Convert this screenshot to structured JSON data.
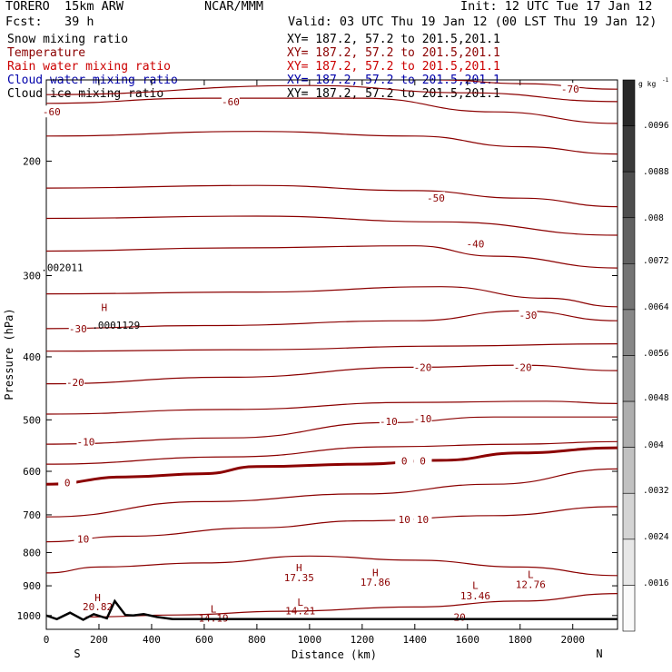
{
  "header": {
    "model": "TORERO  15km ARW",
    "center": "NCAR/MMM",
    "init": "Init: 12 UTC Tue 17 Jan 12",
    "fcst": "Fcst:   39 h",
    "valid": "Valid: 03 UTC Thu 19 Jan 12 (00 LST Thu 19 Jan 12)"
  },
  "legend": [
    {
      "name": "Snow mixing ratio",
      "xy": "XY= 187.2, 57.2 to 201.5,201.1",
      "color": "#000000"
    },
    {
      "name": "Temperature",
      "xy": "XY= 187.2, 57.2 to 201.5,201.1",
      "color": "#8b0000"
    },
    {
      "name": "Rain water mixing ratio",
      "xy": "XY= 187.2, 57.2 to 201.5,201.1",
      "color": "#cc0000"
    },
    {
      "name": "Cloud water mixing ratio",
      "xy": "XY= 187.2, 57.2 to 201.5,201.1",
      "color": "#0000aa"
    },
    {
      "name": "Cloud ice mixing ratio",
      "xy": "XY= 187.2, 57.2 to 201.5,201.1",
      "color": "#000000"
    }
  ],
  "colorbar": {
    "unit": "g kg",
    "unit_exp": "-1",
    "ticks": [
      ".0096",
      ".0088",
      ".008",
      ".0072",
      ".0064",
      ".0056",
      ".0048",
      ".004",
      ".0032",
      ".0024",
      ".0016"
    ],
    "range": [
      0.0008,
      0.01
    ]
  },
  "chart_data": {
    "type": "contour",
    "xlabel": "Distance (km)",
    "ylabel": "Pressure (hPa)",
    "xlim": [
      0,
      2170
    ],
    "ylim": [
      1050,
      150
    ],
    "y_scale": "log",
    "xticks": [
      0,
      200,
      400,
      600,
      800,
      1000,
      1200,
      1400,
      1600,
      1800,
      2000
    ],
    "yticks": [
      200,
      300,
      400,
      500,
      600,
      700,
      800,
      900,
      1000
    ],
    "x_end_labels": {
      "left": "S",
      "right": "N"
    },
    "temperature_interval_C": 5,
    "temperature_contours": [
      {
        "label": "-60",
        "points": [
          [
            0,
            163
          ],
          [
            600,
            160
          ],
          [
            1200,
            160
          ],
          [
            1700,
            168
          ],
          [
            2170,
            175
          ]
        ],
        "labels_at": [
          [
            20,
            168
          ],
          [
            700,
            162
          ]
        ]
      },
      {
        "label": "-65",
        "points": [
          [
            0,
            158
          ],
          [
            1000,
            153
          ],
          [
            1600,
            157
          ],
          [
            2170,
            162
          ]
        ],
        "labels_at": []
      },
      {
        "label": "-70",
        "points": [
          [
            1500,
            150
          ],
          [
            1800,
            152
          ],
          [
            2170,
            155
          ]
        ],
        "labels_at": [
          [
            1990,
            155
          ]
        ]
      },
      {
        "label": "-55",
        "points": [
          [
            0,
            183
          ],
          [
            800,
            180
          ],
          [
            1400,
            183
          ],
          [
            1800,
            190
          ],
          [
            2170,
            195
          ]
        ],
        "labels_at": []
      },
      {
        "label": "-50",
        "points": [
          [
            0,
            220
          ],
          [
            800,
            218
          ],
          [
            1400,
            222
          ],
          [
            1800,
            228
          ],
          [
            2170,
            235
          ]
        ],
        "labels_at": [
          [
            1480,
            228
          ]
        ]
      },
      {
        "label": "-45",
        "points": [
          [
            0,
            245
          ],
          [
            800,
            243
          ],
          [
            1500,
            248
          ],
          [
            2170,
            260
          ]
        ],
        "labels_at": []
      },
      {
        "label": "-40",
        "points": [
          [
            0,
            275
          ],
          [
            700,
            272
          ],
          [
            1400,
            270
          ],
          [
            1700,
            280
          ],
          [
            2170,
            292
          ]
        ],
        "labels_at": [
          [
            1630,
            268
          ]
        ]
      },
      {
        "label": "-35",
        "points": [
          [
            0,
            320
          ],
          [
            800,
            318
          ],
          [
            1500,
            312
          ],
          [
            1900,
            325
          ],
          [
            2170,
            335
          ]
        ],
        "labels_at": []
      },
      {
        "label": "-30",
        "points": [
          [
            0,
            362
          ],
          [
            600,
            358
          ],
          [
            1400,
            352
          ],
          [
            1800,
            340
          ],
          [
            2170,
            352
          ]
        ],
        "labels_at": [
          [
            120,
            362
          ],
          [
            1830,
            345
          ]
        ]
      },
      {
        "label": "-25",
        "points": [
          [
            0,
            392
          ],
          [
            800,
            390
          ],
          [
            1500,
            385
          ],
          [
            2170,
            382
          ]
        ],
        "labels_at": []
      },
      {
        "label": "-20",
        "points": [
          [
            0,
            440
          ],
          [
            700,
            430
          ],
          [
            1400,
            415
          ],
          [
            1800,
            412
          ],
          [
            2170,
            420
          ]
        ],
        "labels_at": [
          [
            110,
            438
          ],
          [
            1430,
            415
          ],
          [
            1810,
            415
          ]
        ]
      },
      {
        "label": "-15",
        "points": [
          [
            0,
            490
          ],
          [
            700,
            482
          ],
          [
            1400,
            470
          ],
          [
            1900,
            468
          ],
          [
            2170,
            472
          ]
        ],
        "labels_at": []
      },
      {
        "label": "-10",
        "points": [
          [
            0,
            545
          ],
          [
            700,
            533
          ],
          [
            1300,
            505
          ],
          [
            1700,
            495
          ],
          [
            2170,
            495
          ]
        ],
        "labels_at": [
          [
            150,
            540
          ],
          [
            1300,
            503
          ],
          [
            1430,
            498
          ]
        ]
      },
      {
        "label": "-5",
        "points": [
          [
            0,
            585
          ],
          [
            700,
            570
          ],
          [
            1300,
            550
          ],
          [
            1800,
            545
          ],
          [
            2170,
            540
          ]
        ],
        "labels_at": []
      },
      {
        "label": "0",
        "bold": true,
        "points": [
          [
            0,
            628
          ],
          [
            300,
            612
          ],
          [
            600,
            605
          ],
          [
            800,
            590
          ],
          [
            1200,
            585
          ],
          [
            1500,
            577
          ],
          [
            1800,
            562
          ],
          [
            2170,
            552
          ]
        ],
        "labels_at": [
          [
            80,
            625
          ],
          [
            1360,
            578
          ],
          [
            1430,
            578
          ]
        ]
      },
      {
        "label": "5",
        "points": [
          [
            0,
            705
          ],
          [
            600,
            668
          ],
          [
            1200,
            650
          ],
          [
            1700,
            628
          ],
          [
            2170,
            595
          ]
        ],
        "labels_at": []
      },
      {
        "label": "10",
        "points": [
          [
            0,
            770
          ],
          [
            300,
            755
          ],
          [
            800,
            733
          ],
          [
            1200,
            715
          ],
          [
            1700,
            702
          ],
          [
            2170,
            680
          ]
        ],
        "labels_at": [
          [
            140,
            763
          ],
          [
            1360,
            712
          ],
          [
            1430,
            712
          ]
        ]
      },
      {
        "label": "15",
        "points": [
          [
            0,
            860
          ],
          [
            200,
            842
          ],
          [
            600,
            830
          ],
          [
            1000,
            810
          ],
          [
            1400,
            822
          ],
          [
            1800,
            842
          ],
          [
            2170,
            868
          ]
        ],
        "labels_at": []
      },
      {
        "label": "20",
        "points": [
          [
            150,
            1005
          ],
          [
            500,
            998
          ],
          [
            900,
            985
          ],
          [
            1400,
            970
          ],
          [
            1800,
            950
          ],
          [
            2170,
            925
          ]
        ],
        "labels_at": [
          [
            1570,
            1005
          ]
        ]
      }
    ],
    "labels": [
      {
        "text": "H",
        "x": 195,
        "y": 950
      },
      {
        "text": "20.82",
        "x": 195,
        "y": 982
      },
      {
        "text": "L",
        "x": 635,
        "y": 990
      },
      {
        "text": "14.19",
        "x": 635,
        "y": 1022
      },
      {
        "text": "H",
        "x": 960,
        "y": 855
      },
      {
        "text": "17.35",
        "x": 960,
        "y": 885
      },
      {
        "text": "L",
        "x": 965,
        "y": 965
      },
      {
        "text": "14.21",
        "x": 965,
        "y": 995
      },
      {
        "text": "H",
        "x": 1250,
        "y": 870
      },
      {
        "text": "17.86",
        "x": 1250,
        "y": 900
      },
      {
        "text": "L",
        "x": 1630,
        "y": 910
      },
      {
        "text": "13.46",
        "x": 1630,
        "y": 945
      },
      {
        "text": "L",
        "x": 1840,
        "y": 875
      },
      {
        "text": "12.76",
        "x": 1840,
        "y": 907
      },
      {
        "text": "H",
        "x": 220,
        "y": 340
      },
      {
        "text": ".0001129",
        "x": 265,
        "y": 362
      },
      {
        "text": ".002011",
        "x": 60,
        "y": 295
      }
    ],
    "terrain": [
      [
        0,
        1000
      ],
      [
        40,
        1013
      ],
      [
        90,
        990
      ],
      [
        140,
        1015
      ],
      [
        180,
        995
      ],
      [
        230,
        1010
      ],
      [
        260,
        950
      ],
      [
        300,
        998
      ],
      [
        330,
        1000
      ],
      [
        370,
        995
      ],
      [
        420,
        1005
      ],
      [
        480,
        1013
      ],
      [
        2170,
        1013
      ]
    ]
  }
}
